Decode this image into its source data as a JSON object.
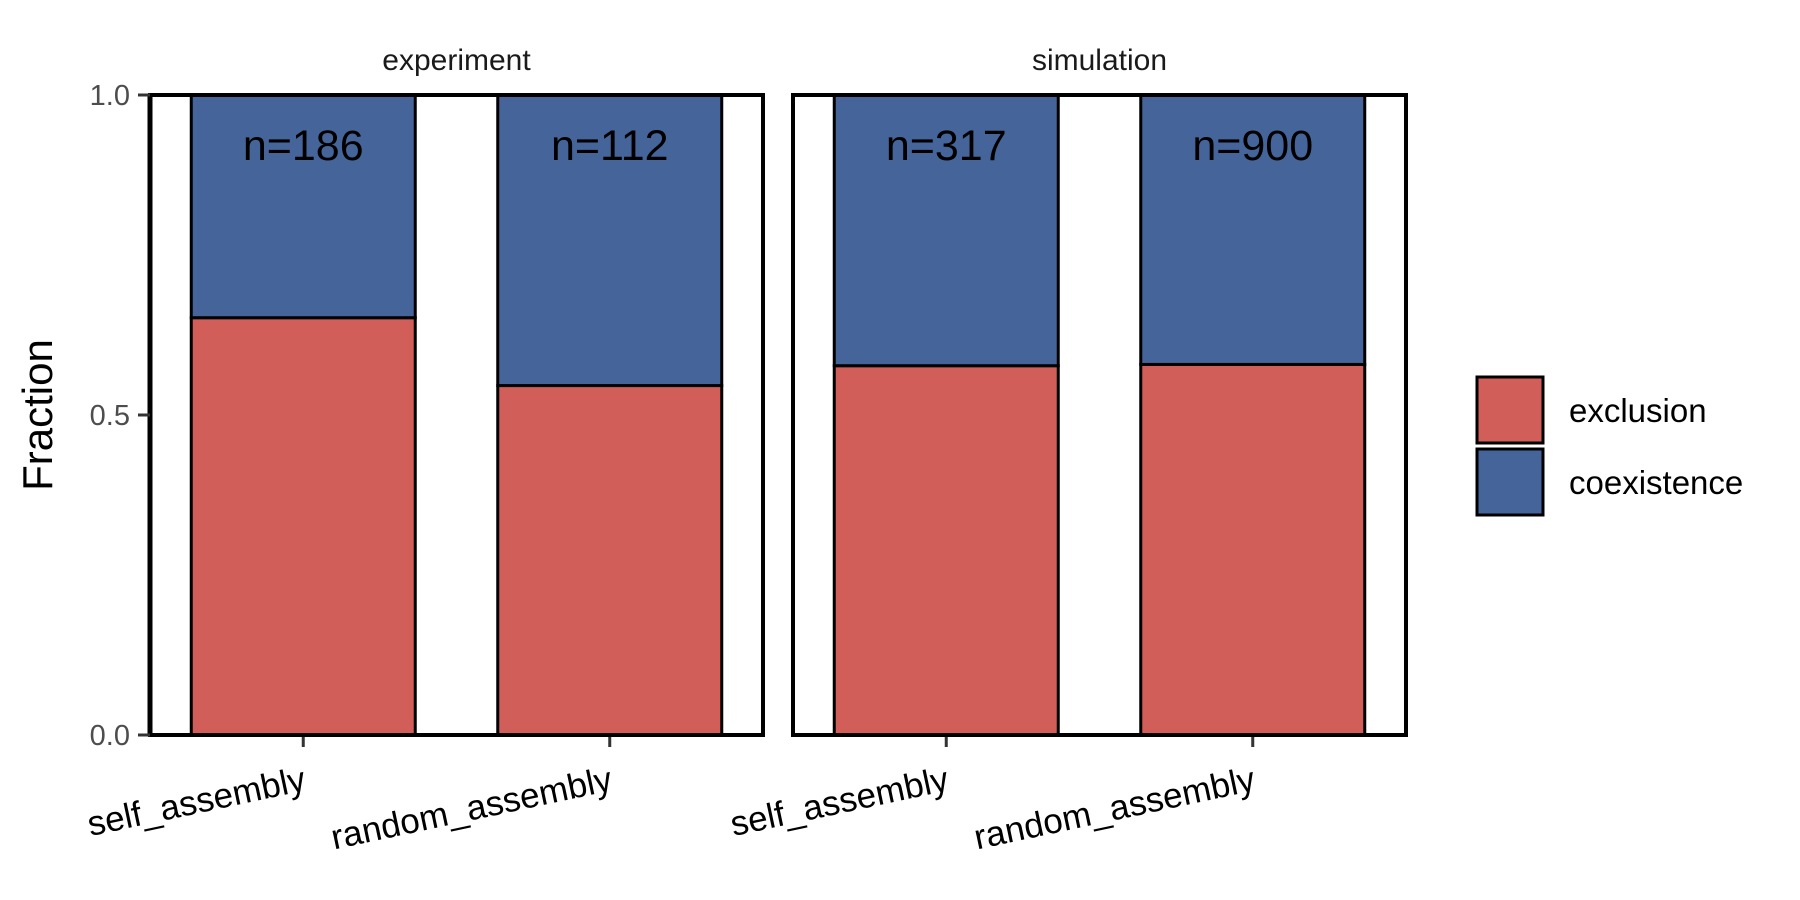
{
  "chart_data": {
    "type": "bar",
    "stacked": true,
    "ylabel": "Fraction",
    "xlabel": "",
    "ylim": [
      0,
      1
    ],
    "yticks": [
      "0.0",
      "0.5",
      "1.0"
    ],
    "categories": [
      "self_assembly",
      "random_assembly"
    ],
    "panels": [
      {
        "name": "experiment",
        "n_labels": [
          "n=186",
          "n=112"
        ],
        "exclusion": [
          0.652,
          0.546
        ],
        "coexistence": [
          0.348,
          0.454
        ]
      },
      {
        "name": "simulation",
        "n_labels": [
          "n=317",
          "n=900"
        ],
        "exclusion": [
          0.577,
          0.579
        ],
        "coexistence": [
          0.423,
          0.421
        ]
      }
    ],
    "series": [
      {
        "name": "exclusion",
        "color": "#D15E58"
      },
      {
        "name": "coexistence",
        "color": "#45659A"
      }
    ],
    "legend_position": "right",
    "grid": false
  }
}
